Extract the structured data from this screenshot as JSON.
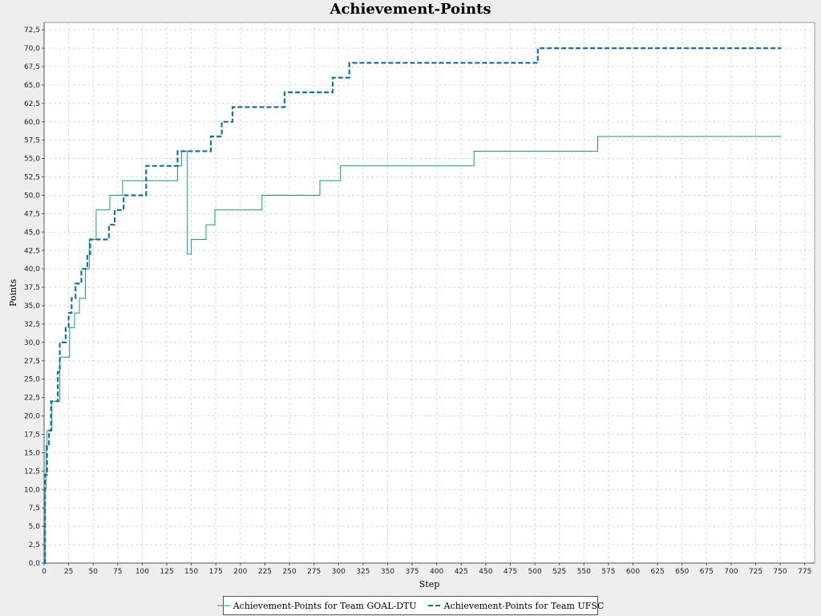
{
  "chart_data": {
    "type": "line",
    "title": "Achievement-Points",
    "xlabel": "Step",
    "ylabel": "Points",
    "xlim": [
      0,
      785
    ],
    "ylim": [
      0,
      73.5
    ],
    "x_ticks": [
      0,
      25,
      50,
      75,
      100,
      125,
      150,
      175,
      200,
      225,
      250,
      275,
      300,
      325,
      350,
      375,
      400,
      425,
      450,
      475,
      500,
      525,
      550,
      575,
      600,
      625,
      650,
      675,
      700,
      725,
      750,
      775
    ],
    "y_ticks": [
      "0,0",
      "2,5",
      "5,0",
      "7,5",
      "10,0",
      "12,5",
      "15,0",
      "17,5",
      "20,0",
      "22,5",
      "25,0",
      "27,5",
      "30,0",
      "32,5",
      "35,0",
      "37,5",
      "40,0",
      "42,5",
      "45,0",
      "47,5",
      "50,0",
      "52,5",
      "55,0",
      "57,5",
      "60,0",
      "62,5",
      "65,0",
      "67,5",
      "70,0",
      "72,5"
    ],
    "grid": true,
    "legend_position": "bottom",
    "series": [
      {
        "name": "Achievement-Points for Team GOAL-DTU",
        "color": "#169c7a",
        "style": "solid-thin",
        "steps": [
          [
            0,
            0
          ],
          [
            1,
            10
          ],
          [
            2,
            16
          ],
          [
            3,
            18
          ],
          [
            8,
            22
          ],
          [
            16,
            28
          ],
          [
            26,
            32
          ],
          [
            31,
            34
          ],
          [
            36,
            36
          ],
          [
            42,
            40
          ],
          [
            46,
            44
          ],
          [
            53,
            48
          ],
          [
            67,
            50
          ],
          [
            80,
            52
          ],
          [
            136,
            54
          ],
          [
            140,
            56
          ],
          [
            146,
            42
          ],
          [
            150,
            44
          ],
          [
            165,
            46
          ],
          [
            174,
            48
          ],
          [
            222,
            50
          ],
          [
            281,
            52
          ],
          [
            302,
            54
          ],
          [
            438,
            56
          ],
          [
            564,
            58
          ],
          [
            751,
            58
          ]
        ]
      },
      {
        "name": "Achievement-Points for Team UFSC",
        "color": "#1472a8",
        "style": "dashed-thick",
        "steps": [
          [
            0,
            0
          ],
          [
            1,
            12
          ],
          [
            3,
            16
          ],
          [
            5,
            18
          ],
          [
            7,
            22
          ],
          [
            14,
            26
          ],
          [
            16,
            30
          ],
          [
            22,
            32
          ],
          [
            25,
            34
          ],
          [
            28,
            36
          ],
          [
            32,
            38
          ],
          [
            38,
            40
          ],
          [
            44,
            42
          ],
          [
            47,
            44
          ],
          [
            66,
            46
          ],
          [
            72,
            48
          ],
          [
            81,
            50
          ],
          [
            104,
            54
          ],
          [
            136,
            56
          ],
          [
            170,
            58
          ],
          [
            181,
            60
          ],
          [
            192,
            62
          ],
          [
            245,
            64
          ],
          [
            294,
            66
          ],
          [
            311,
            68
          ],
          [
            503,
            70
          ],
          [
            751,
            70
          ]
        ]
      }
    ]
  }
}
